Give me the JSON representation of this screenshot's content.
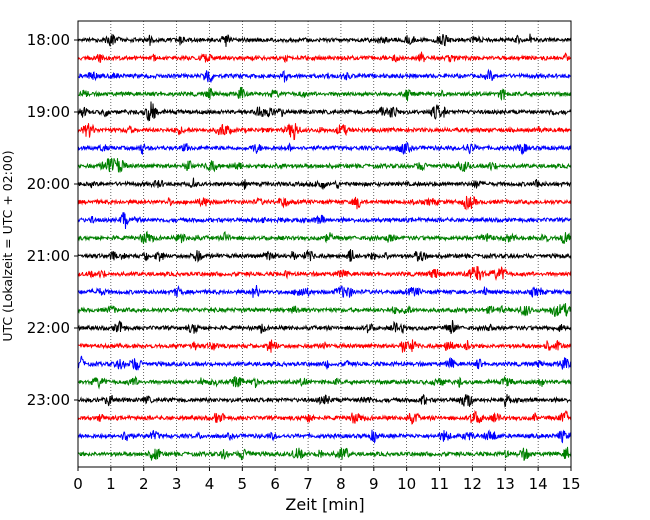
{
  "chart_data": {
    "type": "line",
    "chart_kind": "helicorder",
    "xlabel": "Zeit  [min]",
    "ylabel": "UTC (Lokalzeit = UTC + 02:00)",
    "xlim": [
      0,
      15
    ],
    "x_ticks": [
      0,
      1,
      2,
      3,
      4,
      5,
      6,
      7,
      8,
      9,
      10,
      11,
      12,
      13,
      14,
      15
    ],
    "x_tick_labels": [
      "0",
      "1",
      "2",
      "3",
      "4",
      "5",
      "6",
      "7",
      "8",
      "9",
      "10",
      "11",
      "12",
      "13",
      "14",
      "15"
    ],
    "y_tick_labels": [
      "18:00",
      "19:00",
      "20:00",
      "21:00",
      "22:00",
      "23:00"
    ],
    "trace_minutes_per_line": 15,
    "traces": [
      {
        "start": "18:00",
        "color": "#000000"
      },
      {
        "start": "18:15",
        "color": "#ff0000"
      },
      {
        "start": "18:30",
        "color": "#0000ff"
      },
      {
        "start": "18:45",
        "color": "#008000"
      },
      {
        "start": "19:00",
        "color": "#000000"
      },
      {
        "start": "19:15",
        "color": "#ff0000"
      },
      {
        "start": "19:30",
        "color": "#0000ff"
      },
      {
        "start": "19:45",
        "color": "#008000"
      },
      {
        "start": "20:00",
        "color": "#000000"
      },
      {
        "start": "20:15",
        "color": "#ff0000"
      },
      {
        "start": "20:30",
        "color": "#0000ff"
      },
      {
        "start": "20:45",
        "color": "#008000"
      },
      {
        "start": "21:00",
        "color": "#000000"
      },
      {
        "start": "21:15",
        "color": "#ff0000"
      },
      {
        "start": "21:30",
        "color": "#0000ff"
      },
      {
        "start": "21:45",
        "color": "#008000"
      },
      {
        "start": "22:00",
        "color": "#000000"
      },
      {
        "start": "22:15",
        "color": "#ff0000"
      },
      {
        "start": "22:30",
        "color": "#0000ff"
      },
      {
        "start": "22:45",
        "color": "#008000"
      },
      {
        "start": "23:00",
        "color": "#000000"
      },
      {
        "start": "23:15",
        "color": "#ff0000"
      },
      {
        "start": "23:30",
        "color": "#0000ff"
      },
      {
        "start": "23:45",
        "color": "#008000"
      }
    ],
    "grid": {
      "x": true,
      "style": "dotted"
    },
    "legend": "none"
  }
}
